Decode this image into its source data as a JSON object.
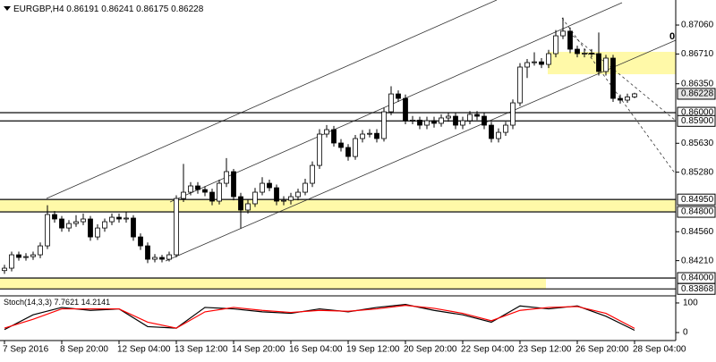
{
  "chart_data": [
    {
      "type": "candlestick",
      "title": "EURGBP,H4",
      "annotation": "0",
      "categories": [
        "7 Sep 2016",
        null,
        null,
        null,
        null,
        null,
        null,
        null,
        "8 Sep 20:00",
        null,
        null,
        null,
        null,
        null,
        null,
        null,
        "12 Sep 04:00",
        null,
        null,
        null,
        null,
        null,
        null,
        null,
        "13 Sep 12:00",
        null,
        null,
        null,
        null,
        null,
        null,
        null,
        "14 Sep 20:00",
        null,
        null,
        null,
        null,
        null,
        null,
        null,
        "16 Sep 04:00",
        null,
        null,
        null,
        null,
        null,
        null,
        null,
        "19 Sep 12:00",
        null,
        null,
        null,
        null,
        null,
        null,
        null,
        "20 Sep 20:00",
        null,
        null,
        null,
        null,
        null,
        null,
        null,
        "22 Sep 04:00",
        null,
        null,
        null,
        null,
        null,
        null,
        null,
        "23 Sep 12:00",
        null,
        null,
        null,
        null,
        null,
        null,
        null,
        "26 Sep 20:00",
        null,
        null,
        null,
        null,
        null,
        null,
        null,
        "28 Sep 04:00"
      ],
      "open": [
        0.8409,
        0.84119,
        0.84281,
        0.84249,
        0.84259,
        0.84281,
        0.84389,
        0.84768,
        0.84714,
        0.84605,
        0.84659,
        0.84681,
        0.84714,
        0.84497,
        0.84605,
        0.84681,
        0.84735,
        0.84714,
        0.84725,
        0.84497,
        0.84389,
        0.84227,
        0.84249,
        0.84227,
        0.84281,
        0.84962,
        0.85038,
        0.85114,
        0.8507,
        0.85038,
        0.8493,
        0.85146,
        0.85287,
        0.84984,
        0.84822,
        0.84898,
        0.85038,
        0.85146,
        0.85092,
        0.8493,
        0.8494,
        0.84984,
        0.85038,
        0.85146,
        0.85362,
        0.85741,
        0.85795,
        0.85633,
        0.85579,
        0.8547,
        0.85687,
        0.85741,
        0.8575,
        0.85687,
        0.86011,
        0.86227,
        0.86173,
        0.85903,
        0.8591,
        0.85849,
        0.85903,
        0.85871,
        0.85936,
        0.85957,
        0.85849,
        0.85903,
        0.85979,
        0.85957,
        0.85849,
        0.85687,
        0.85762,
        0.85849,
        0.86119,
        0.86552,
        0.86606,
        0.86615,
        0.86584,
        0.86714,
        0.8693,
        0.86986,
        0.86768,
        0.86714,
        0.8672,
        0.86714,
        0.86498,
        0.8666,
        0.86173,
        0.86152,
        0.86191
      ],
      "high": [
        0.8416,
        0.8432,
        0.8432,
        0.843,
        0.8432,
        0.8443,
        0.8488,
        0.8481,
        0.8475,
        0.847,
        0.8476,
        0.8478,
        0.8475,
        0.8465,
        0.8472,
        0.8478,
        0.8478,
        0.848,
        0.8476,
        0.8454,
        0.8443,
        0.8429,
        0.8428,
        0.8432,
        0.85,
        0.8538,
        0.8516,
        0.8516,
        0.8511,
        0.8508,
        0.8519,
        0.8545,
        0.8532,
        0.8503,
        0.8495,
        0.8509,
        0.8522,
        0.8519,
        0.8513,
        0.8499,
        0.8503,
        0.8508,
        0.852,
        0.8541,
        0.858,
        0.8585,
        0.8584,
        0.8568,
        0.8562,
        0.8573,
        0.8579,
        0.858,
        0.858,
        0.8606,
        0.8632,
        0.8627,
        0.8622,
        0.8596,
        0.8595,
        0.8595,
        0.8595,
        0.8598,
        0.86,
        0.86,
        0.8595,
        0.8602,
        0.8602,
        0.86,
        0.8589,
        0.8581,
        0.8589,
        0.8616,
        0.866,
        0.8665,
        0.8673,
        0.8666,
        0.8676,
        0.87,
        0.8715,
        0.8703,
        0.8681,
        0.8677,
        0.8677,
        0.8697,
        0.867,
        0.867,
        0.8622,
        0.8623,
        0.86241
      ],
      "low": [
        0.8405,
        0.8408,
        0.8421,
        0.8421,
        0.8422,
        0.8424,
        0.8435,
        0.8467,
        0.8456,
        0.8456,
        0.8462,
        0.8464,
        0.8445,
        0.8446,
        0.8456,
        0.8464,
        0.8467,
        0.8467,
        0.8445,
        0.8434,
        0.8418,
        0.8419,
        0.8419,
        0.842,
        0.8425,
        0.8492,
        0.85,
        0.8502,
        0.8499,
        0.8488,
        0.8489,
        0.851,
        0.8494,
        0.846,
        0.8478,
        0.8486,
        0.85,
        0.8505,
        0.8488,
        0.8488,
        0.8489,
        0.8494,
        0.85,
        0.851,
        0.8532,
        0.857,
        0.8559,
        0.8553,
        0.8542,
        0.8543,
        0.8564,
        0.857,
        0.8564,
        0.8565,
        0.8597,
        0.8613,
        0.8586,
        0.8586,
        0.858,
        0.858,
        0.8582,
        0.8583,
        0.8589,
        0.858,
        0.858,
        0.8586,
        0.8591,
        0.858,
        0.8564,
        0.8564,
        0.8572,
        0.858,
        0.8608,
        0.8642,
        0.8657,
        0.8654,
        0.8654,
        0.8667,
        0.8689,
        0.8672,
        0.8667,
        0.8667,
        0.8667,
        0.8645,
        0.8645,
        0.8613,
        0.8611,
        0.8612,
        0.86175
      ],
      "close": [
        0.84119,
        0.84281,
        0.84249,
        0.84259,
        0.84281,
        0.84389,
        0.84768,
        0.84714,
        0.84605,
        0.84659,
        0.84681,
        0.84714,
        0.84497,
        0.84605,
        0.84681,
        0.84735,
        0.84714,
        0.84725,
        0.84497,
        0.84389,
        0.84227,
        0.84249,
        0.84227,
        0.84281,
        0.84962,
        0.85038,
        0.85114,
        0.8507,
        0.85038,
        0.8493,
        0.85146,
        0.85287,
        0.84984,
        0.84822,
        0.84898,
        0.85038,
        0.85146,
        0.85092,
        0.8493,
        0.8494,
        0.84984,
        0.85038,
        0.85146,
        0.85362,
        0.85741,
        0.85795,
        0.85633,
        0.85579,
        0.8547,
        0.85687,
        0.85741,
        0.8575,
        0.85687,
        0.86011,
        0.86227,
        0.86173,
        0.85903,
        0.8591,
        0.85849,
        0.85903,
        0.85871,
        0.85936,
        0.85957,
        0.85849,
        0.85903,
        0.85979,
        0.85957,
        0.85849,
        0.85687,
        0.85762,
        0.85849,
        0.86119,
        0.86552,
        0.86606,
        0.86615,
        0.86584,
        0.86714,
        0.8693,
        0.86986,
        0.86768,
        0.86714,
        0.8672,
        0.86714,
        0.86498,
        0.8666,
        0.86173,
        0.86152,
        0.86191,
        0.86228
      ],
      "up_color": "#ffffff",
      "down_color": "#000000",
      "ylim": [
        0.83795,
        0.87363
      ],
      "yticks": [
        {
          "value": 0.8706,
          "label": "0.87060"
        },
        {
          "value": 0.8671,
          "label": "0.86710"
        },
        {
          "value": 0.8635,
          "label": "0.86350"
        },
        {
          "value": 0.8563,
          "label": "0.85630"
        },
        {
          "value": 0.8528,
          "label": "0.85280"
        },
        {
          "value": 0.8456,
          "label": "0.84560"
        },
        {
          "value": 0.8421,
          "label": "0.84210"
        }
      ],
      "levels": {
        "values": [
          0.86,
          0.859,
          0.8495,
          0.848,
          0.84,
          0.83868
        ],
        "value_labels": [
          "0.86000",
          "0.85900",
          "0.84950",
          "0.84800",
          "0.84000",
          "0.83868"
        ]
      },
      "zones": {
        "color": "#fff9a8",
        "from": [
          0.848,
          0.83868,
          0.86465
        ],
        "to": [
          0.8495,
          0.84,
          0.86736
        ]
      }
    },
    {
      "type": "line",
      "title": "Stoch(14,3,3)",
      "x": [
        0,
        4,
        8,
        12,
        16,
        20,
        24,
        28,
        32,
        36,
        40,
        44,
        48,
        52,
        56,
        60,
        64,
        68,
        72,
        76,
        80,
        84,
        88
      ],
      "series": [
        {
          "color": "#000000",
          "values": [
            10,
            60,
            85,
            75,
            80,
            20,
            15,
            85,
            80,
            70,
            65,
            80,
            70,
            85,
            95,
            75,
            60,
            35,
            90,
            80,
            90,
            55,
            7.7621
          ]
        },
        {
          "color": "#ff0000",
          "values": [
            15,
            45,
            80,
            80,
            80,
            35,
            15,
            70,
            85,
            75,
            68,
            75,
            72,
            80,
            92,
            82,
            65,
            40,
            75,
            85,
            88,
            65,
            14.2141
          ]
        }
      ],
      "ylim": [
        -27,
        118
      ],
      "yticks": [
        0,
        100
      ]
    }
  ]
}
